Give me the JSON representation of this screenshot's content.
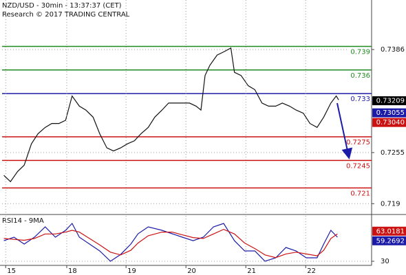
{
  "chart_data": [
    {
      "type": "line",
      "title": "NZD/USD - 30min - 13:37:37 (CET)",
      "subtitle": "Research © 2017 TRADING CENTRAL",
      "x": [
        -0.03,
        0.08,
        0.2,
        0.31,
        0.43,
        0.54,
        0.66,
        0.77,
        0.89,
        1.0,
        1.11,
        1.23,
        1.34,
        1.46,
        1.57,
        1.69,
        1.8,
        1.92,
        2.03,
        2.15,
        2.26,
        2.38,
        2.49,
        2.61,
        2.72,
        2.84,
        2.95,
        3.07,
        3.18,
        3.26,
        3.33,
        3.41,
        3.53,
        3.64,
        3.76,
        3.82,
        3.93,
        4.05,
        4.16,
        4.28,
        4.39,
        4.51,
        4.62,
        4.74,
        4.85,
        4.97,
        5.08,
        5.2,
        5.31,
        5.43,
        5.52,
        5.56
      ],
      "values": [
        0.7226,
        0.7218,
        0.7231,
        0.7239,
        0.7266,
        0.7279,
        0.7287,
        0.7292,
        0.7292,
        0.7296,
        0.7327,
        0.7314,
        0.7309,
        0.73,
        0.7279,
        0.7261,
        0.7257,
        0.7261,
        0.7266,
        0.727,
        0.7279,
        0.7287,
        0.73,
        0.7309,
        0.7318,
        0.7318,
        0.7318,
        0.7318,
        0.7314,
        0.7309,
        0.7353,
        0.7366,
        0.7379,
        0.7383,
        0.7388,
        0.7357,
        0.7353,
        0.734,
        0.7335,
        0.7318,
        0.7314,
        0.7314,
        0.7318,
        0.7314,
        0.7309,
        0.7305,
        0.7292,
        0.7287,
        0.73,
        0.7318,
        0.7327,
        0.7322
      ],
      "color": "#111111",
      "xlim": [
        -0.06,
        6.11
      ],
      "ylim": [
        0.7178,
        0.7449
      ],
      "yticks": [
        0.719,
        0.7255,
        0.7386
      ],
      "grid": true,
      "levels": [
        {
          "value": 0.739,
          "color": "#1f8a1f"
        },
        {
          "value": 0.736,
          "color": "#1f8a1f"
        },
        {
          "value": 0.733,
          "color": "#1b1ba8"
        },
        {
          "value": 0.7275,
          "color": "#cc1111"
        },
        {
          "value": 0.7245,
          "color": "#cc1111"
        },
        {
          "value": 0.721,
          "color": "#cc1111"
        }
      ],
      "price_tags": [
        {
          "value": 0.73209,
          "label": "0.73209",
          "color": "#000000"
        },
        {
          "value": 0.73055,
          "label": "0.73055",
          "color": "#1b1ba8"
        },
        {
          "value": 0.7304,
          "label": "0.73040",
          "color": "#cc1111"
        }
      ]
    },
    {
      "type": "line",
      "title": "RSI14 - 9MA",
      "x": [
        -0.03,
        0.14,
        0.31,
        0.48,
        0.66,
        0.83,
        1.0,
        1.11,
        1.23,
        1.4,
        1.57,
        1.75,
        1.92,
        2.09,
        2.21,
        2.38,
        2.61,
        2.78,
        2.95,
        3.13,
        3.3,
        3.47,
        3.64,
        3.82,
        3.99,
        4.16,
        4.33,
        4.51,
        4.68,
        4.85,
        5.02,
        5.2,
        5.31,
        5.43,
        5.54
      ],
      "series": [
        {
          "color": "#1b1ba8",
          "values": [
            52.6,
            56.4,
            48.9,
            56.4,
            67.7,
            56.4,
            64,
            71.5,
            56.4,
            48.9,
            41.3,
            30,
            37.5,
            48.9,
            60.2,
            67.7,
            64,
            60.2,
            56.4,
            52.6,
            56.4,
            67.7,
            71.5,
            52.6,
            41.3,
            41.3,
            30,
            33.8,
            45.1,
            41.3,
            33.8,
            33.8,
            48.9,
            64,
            56.4
          ]
        },
        {
          "color": "#cc1111",
          "values": [
            55,
            54,
            53,
            55,
            60,
            60,
            62,
            64,
            62,
            55,
            48,
            40,
            37,
            42,
            50,
            58,
            62,
            62,
            59,
            56,
            55,
            60,
            65,
            60,
            50,
            44,
            37,
            34,
            38,
            40,
            38,
            36,
            42,
            55,
            60
          ]
        }
      ],
      "xlim": [
        -0.06,
        6.11
      ],
      "ylim": [
        25.5,
        79.8
      ],
      "yticks": [
        30
      ],
      "grid": true,
      "xticks": [
        {
          "value": 0,
          "label": "15"
        },
        {
          "value": 1.02,
          "label": "18"
        },
        {
          "value": 2.01,
          "label": "19"
        },
        {
          "value": 3.01,
          "label": "20"
        },
        {
          "value": 4.01,
          "label": "21"
        },
        {
          "value": 5.01,
          "label": "22"
        }
      ],
      "value_tags": [
        {
          "value": 63.0181,
          "color": "#cc1111"
        },
        {
          "value": 59.2692,
          "color": "#1b1ba8"
        }
      ]
    }
  ]
}
